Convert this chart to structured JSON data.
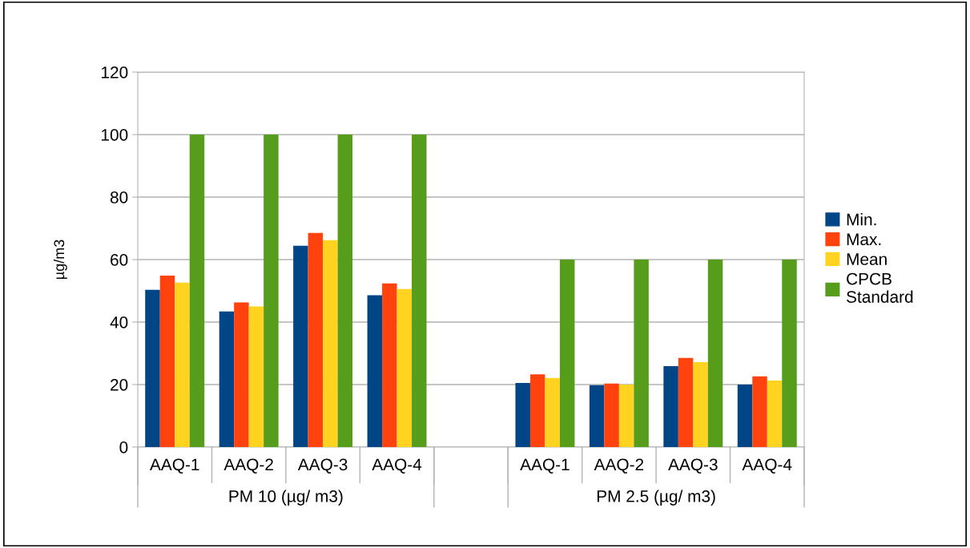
{
  "chart_data": {
    "type": "bar",
    "categories": [
      "AAQ-1",
      "AAQ-2",
      "AAQ-3",
      "AAQ-4",
      null,
      "AAQ-1",
      "AAQ-2",
      "AAQ-3",
      "AAQ-4"
    ],
    "series": [
      {
        "name": "Min.",
        "color": "#004586",
        "values": [
          50.3,
          43.4,
          64.4,
          48.6,
          null,
          20.5,
          19.8,
          25.9,
          20.0
        ]
      },
      {
        "name": "Max.",
        "color": "#ff420e",
        "values": [
          54.9,
          46.3,
          68.5,
          52.4,
          null,
          23.3,
          20.3,
          28.5,
          22.6
        ]
      },
      {
        "name": "Mean",
        "color": "#ffd320",
        "values": [
          52.6,
          45.0,
          66.2,
          50.6,
          null,
          22.1,
          20.0,
          27.2,
          21.3
        ]
      },
      {
        "name": "CPCB Standard",
        "color": "#579d1c",
        "values": [
          100,
          100,
          100,
          100,
          null,
          60,
          60,
          60,
          60
        ]
      }
    ],
    "ylabel": "µg/m3",
    "ylim": [
      0,
      120
    ],
    "yticks": [
      0,
      20,
      40,
      60,
      80,
      100,
      120
    ],
    "grid": "y",
    "legend": "right",
    "annotations": [
      "PM 10 (µg/ m3)",
      "PM 2.5 (µg/ m3)"
    ]
  }
}
